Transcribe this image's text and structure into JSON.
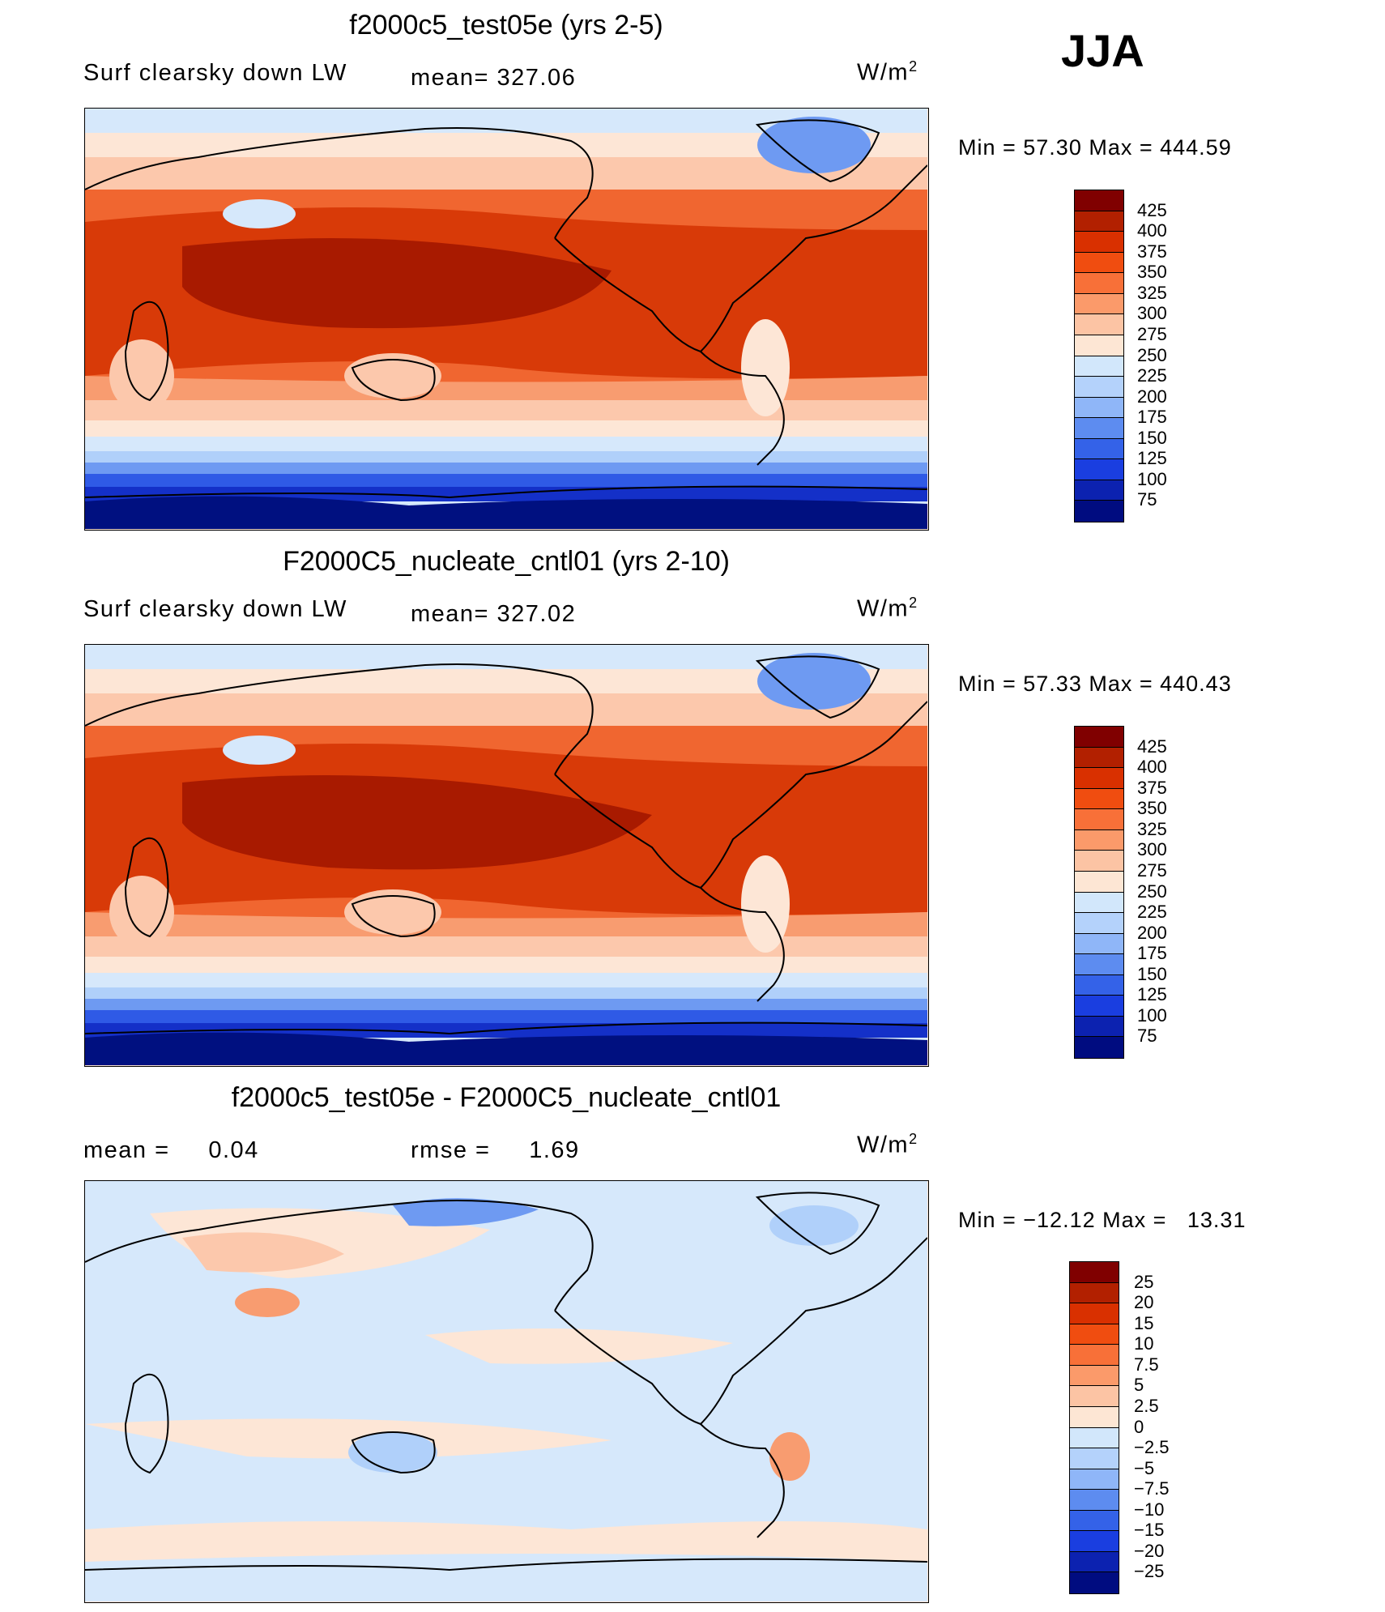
{
  "season": "JJA",
  "panels": [
    {
      "title": "f2000c5_test05e (yrs 2-5)",
      "left_label": "Surf clearsky down LW",
      "mid_label": "mean= 327.06",
      "units": "W/m",
      "units_sup": "2",
      "minmax": "Min =   57.30 Max = 444.59",
      "colorbar_colors": [
        "#800000",
        "#b22000",
        "#d93000",
        "#f04d10",
        "#f87038",
        "#fb9a6a",
        "#fcc4a4",
        "#fde6d4",
        "#d2e7fb",
        "#b4d2fb",
        "#8fb6f8",
        "#5d8cf0",
        "#3462e8",
        "#1a3ee0",
        "#0c22b0",
        "#000c80"
      ],
      "colorbar_labels": [
        "425",
        "400",
        "375",
        "350",
        "325",
        "300",
        "275",
        "250",
        "225",
        "200",
        "175",
        "150",
        "125",
        "100",
        "75"
      ]
    },
    {
      "title": "F2000C5_nucleate_cntl01 (yrs 2-10)",
      "left_label": "Surf clearsky down LW",
      "mid_label": "mean= 327.02",
      "units": "W/m",
      "units_sup": "2",
      "minmax": "Min =   57.33 Max = 440.43",
      "colorbar_colors": [
        "#800000",
        "#b22000",
        "#d93000",
        "#f04d10",
        "#f87038",
        "#fb9a6a",
        "#fcc4a4",
        "#fde6d4",
        "#d2e7fb",
        "#b4d2fb",
        "#8fb6f8",
        "#5d8cf0",
        "#3462e8",
        "#1a3ee0",
        "#0c22b0",
        "#000c80"
      ],
      "colorbar_labels": [
        "425",
        "400",
        "375",
        "350",
        "325",
        "300",
        "275",
        "250",
        "225",
        "200",
        "175",
        "150",
        "125",
        "100",
        "75"
      ]
    },
    {
      "title": "f2000c5_test05e - F2000C5_nucleate_cntl01",
      "left_label": "mean =     0.04",
      "mid_label": "rmse =     1.69",
      "units": "W/m",
      "units_sup": "2",
      "minmax": "Min = −12.12 Max =   13.31",
      "colorbar_colors": [
        "#800000",
        "#b22000",
        "#d93000",
        "#f04d10",
        "#f87038",
        "#fb9a6a",
        "#fcc4a4",
        "#fde6d4",
        "#d2e7fb",
        "#b4d2fb",
        "#8fb6f8",
        "#5d8cf0",
        "#3462e8",
        "#1a3ee0",
        "#0c22b0",
        "#000c80"
      ],
      "colorbar_labels": [
        "25",
        "20",
        "15",
        "10",
        "7.5",
        "5",
        "2.5",
        "0",
        "−2.5",
        "−5",
        "−7.5",
        "−10",
        "−15",
        "−20",
        "−25"
      ]
    }
  ],
  "field_colors": {
    "dark_red": "#a81a00",
    "red": "#d83a08",
    "orange": "#f06630",
    "salmon": "#f89c70",
    "peach": "#fcc8ac",
    "cream": "#fde6d6",
    "light_blue": "#d6e8fb",
    "pale_blue": "#b0d0fa",
    "mid_blue": "#6e9af2",
    "blue": "#2f5ae6",
    "deep_blue": "#1430c8",
    "navy": "#001080"
  }
}
